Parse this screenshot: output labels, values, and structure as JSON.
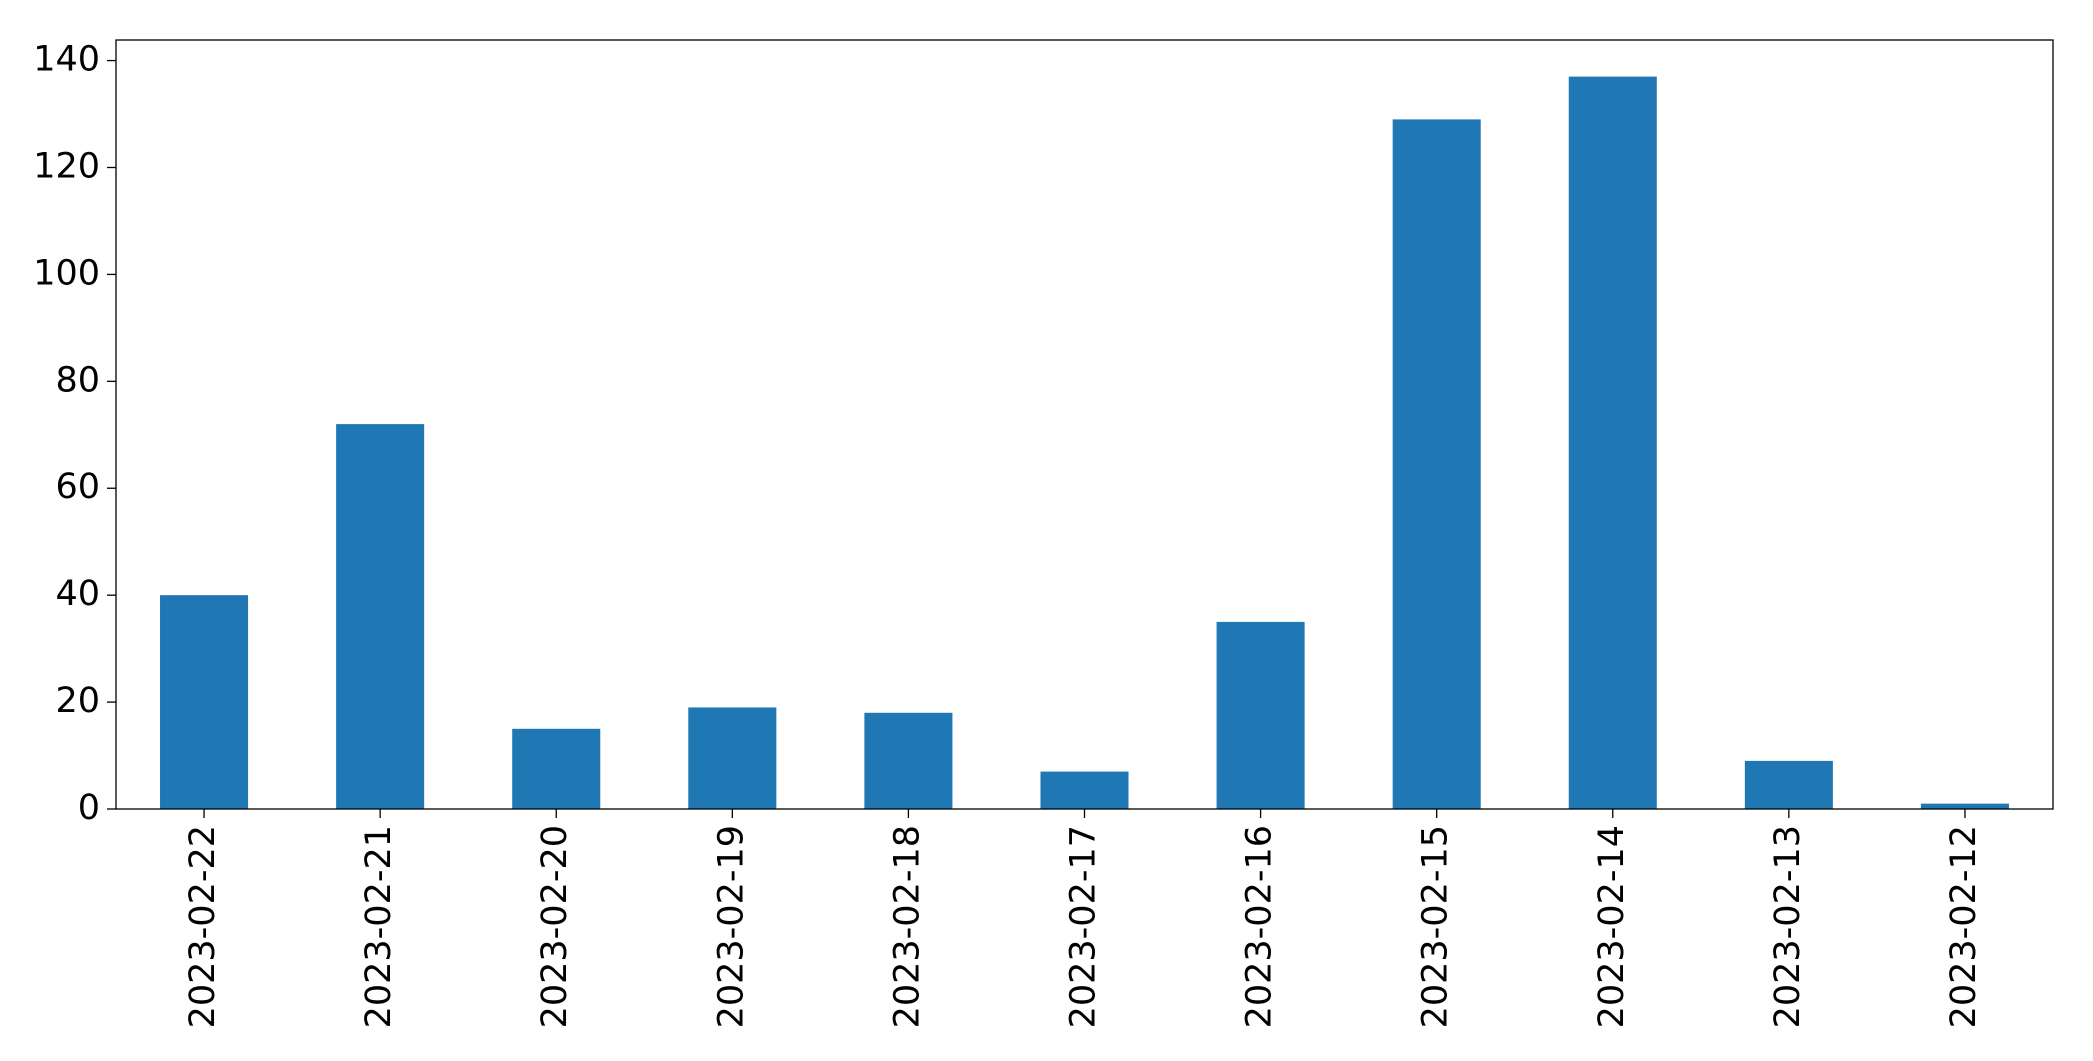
{
  "chart_data": {
    "type": "bar",
    "categories": [
      "2023-02-22",
      "2023-02-21",
      "2023-02-20",
      "2023-02-19",
      "2023-02-18",
      "2023-02-17",
      "2023-02-16",
      "2023-02-15",
      "2023-02-14",
      "2023-02-13",
      "2023-02-12"
    ],
    "values": [
      40,
      72,
      15,
      19,
      18,
      7,
      35,
      129,
      137,
      9,
      1
    ],
    "color": "#1f77b4",
    "ylim": [
      0,
      143.85
    ],
    "yticks": [
      0,
      20,
      40,
      60,
      80,
      100,
      120,
      140
    ],
    "grid": false
  }
}
